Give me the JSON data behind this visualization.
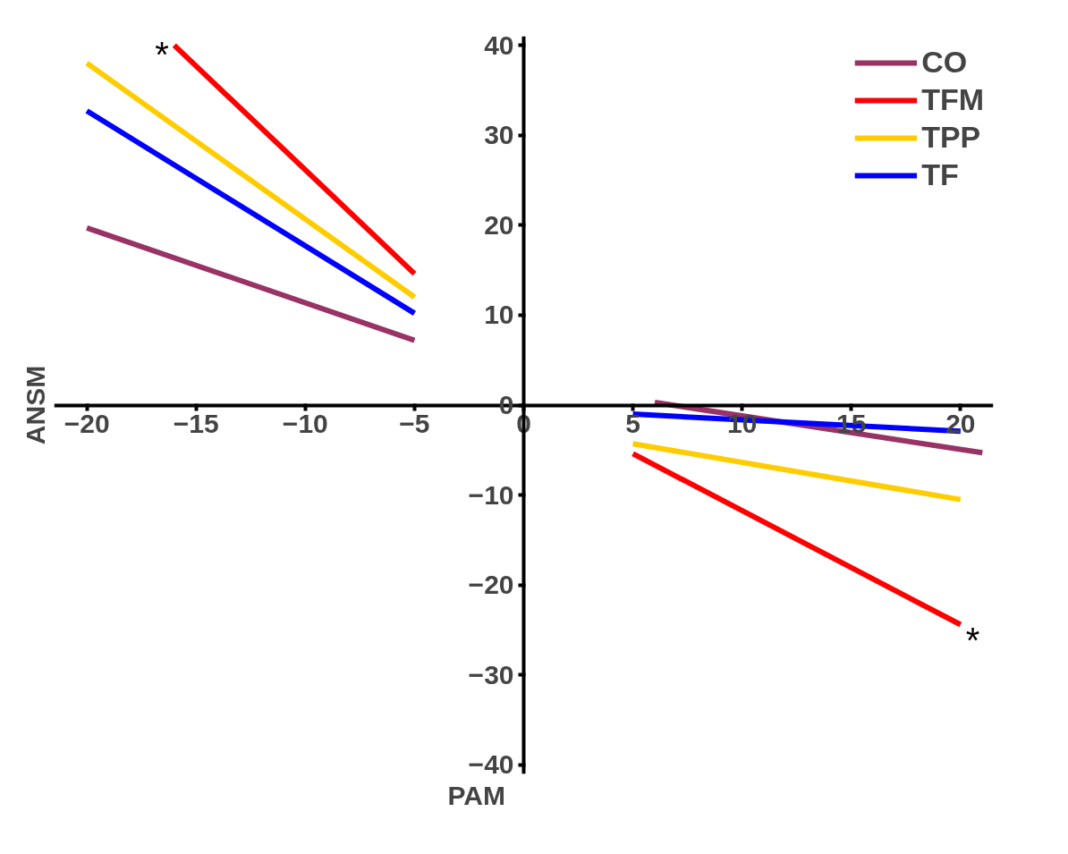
{
  "chart_data": {
    "type": "line",
    "xlabel": "PAM",
    "ylabel": "ANSM",
    "xlim": [
      -21.5,
      21.5
    ],
    "ylim": [
      -41,
      41
    ],
    "xticks": [
      -20,
      -15,
      -10,
      -5,
      0,
      5,
      10,
      15,
      20
    ],
    "yticks": [
      -40,
      -30,
      -20,
      -10,
      0,
      10,
      20,
      30,
      40
    ],
    "grid": false,
    "legend": "top right",
    "marker": "none",
    "line_style": "solid",
    "series": [
      {
        "name": "CO",
        "color": "#993366",
        "x": [
          -20,
          -5,
          0,
          6,
          21
        ],
        "values": [
          19.7,
          7.2,
          null,
          0.3,
          -5.3
        ]
      },
      {
        "name": "TFM",
        "color": "#ff0000",
        "x": [
          -16,
          -5,
          0,
          5,
          20
        ],
        "values": [
          40,
          14.6,
          null,
          -5.4,
          -24.4
        ]
      },
      {
        "name": "TPP",
        "color": "#ffcc00",
        "x": [
          -20,
          -5,
          0,
          5,
          20
        ],
        "values": [
          38.0,
          12.0,
          null,
          -4.3,
          -10.5
        ]
      },
      {
        "name": "TF",
        "color": "#0000ff",
        "x": [
          -20,
          -5,
          0,
          5,
          20
        ],
        "values": [
          32.7,
          10.2,
          null,
          -1.0,
          -2.9
        ]
      }
    ],
    "annotations": [
      {
        "text": "*",
        "x": -16,
        "y": 40
      },
      {
        "text": "*",
        "x": 20,
        "y": -24.4
      }
    ]
  }
}
